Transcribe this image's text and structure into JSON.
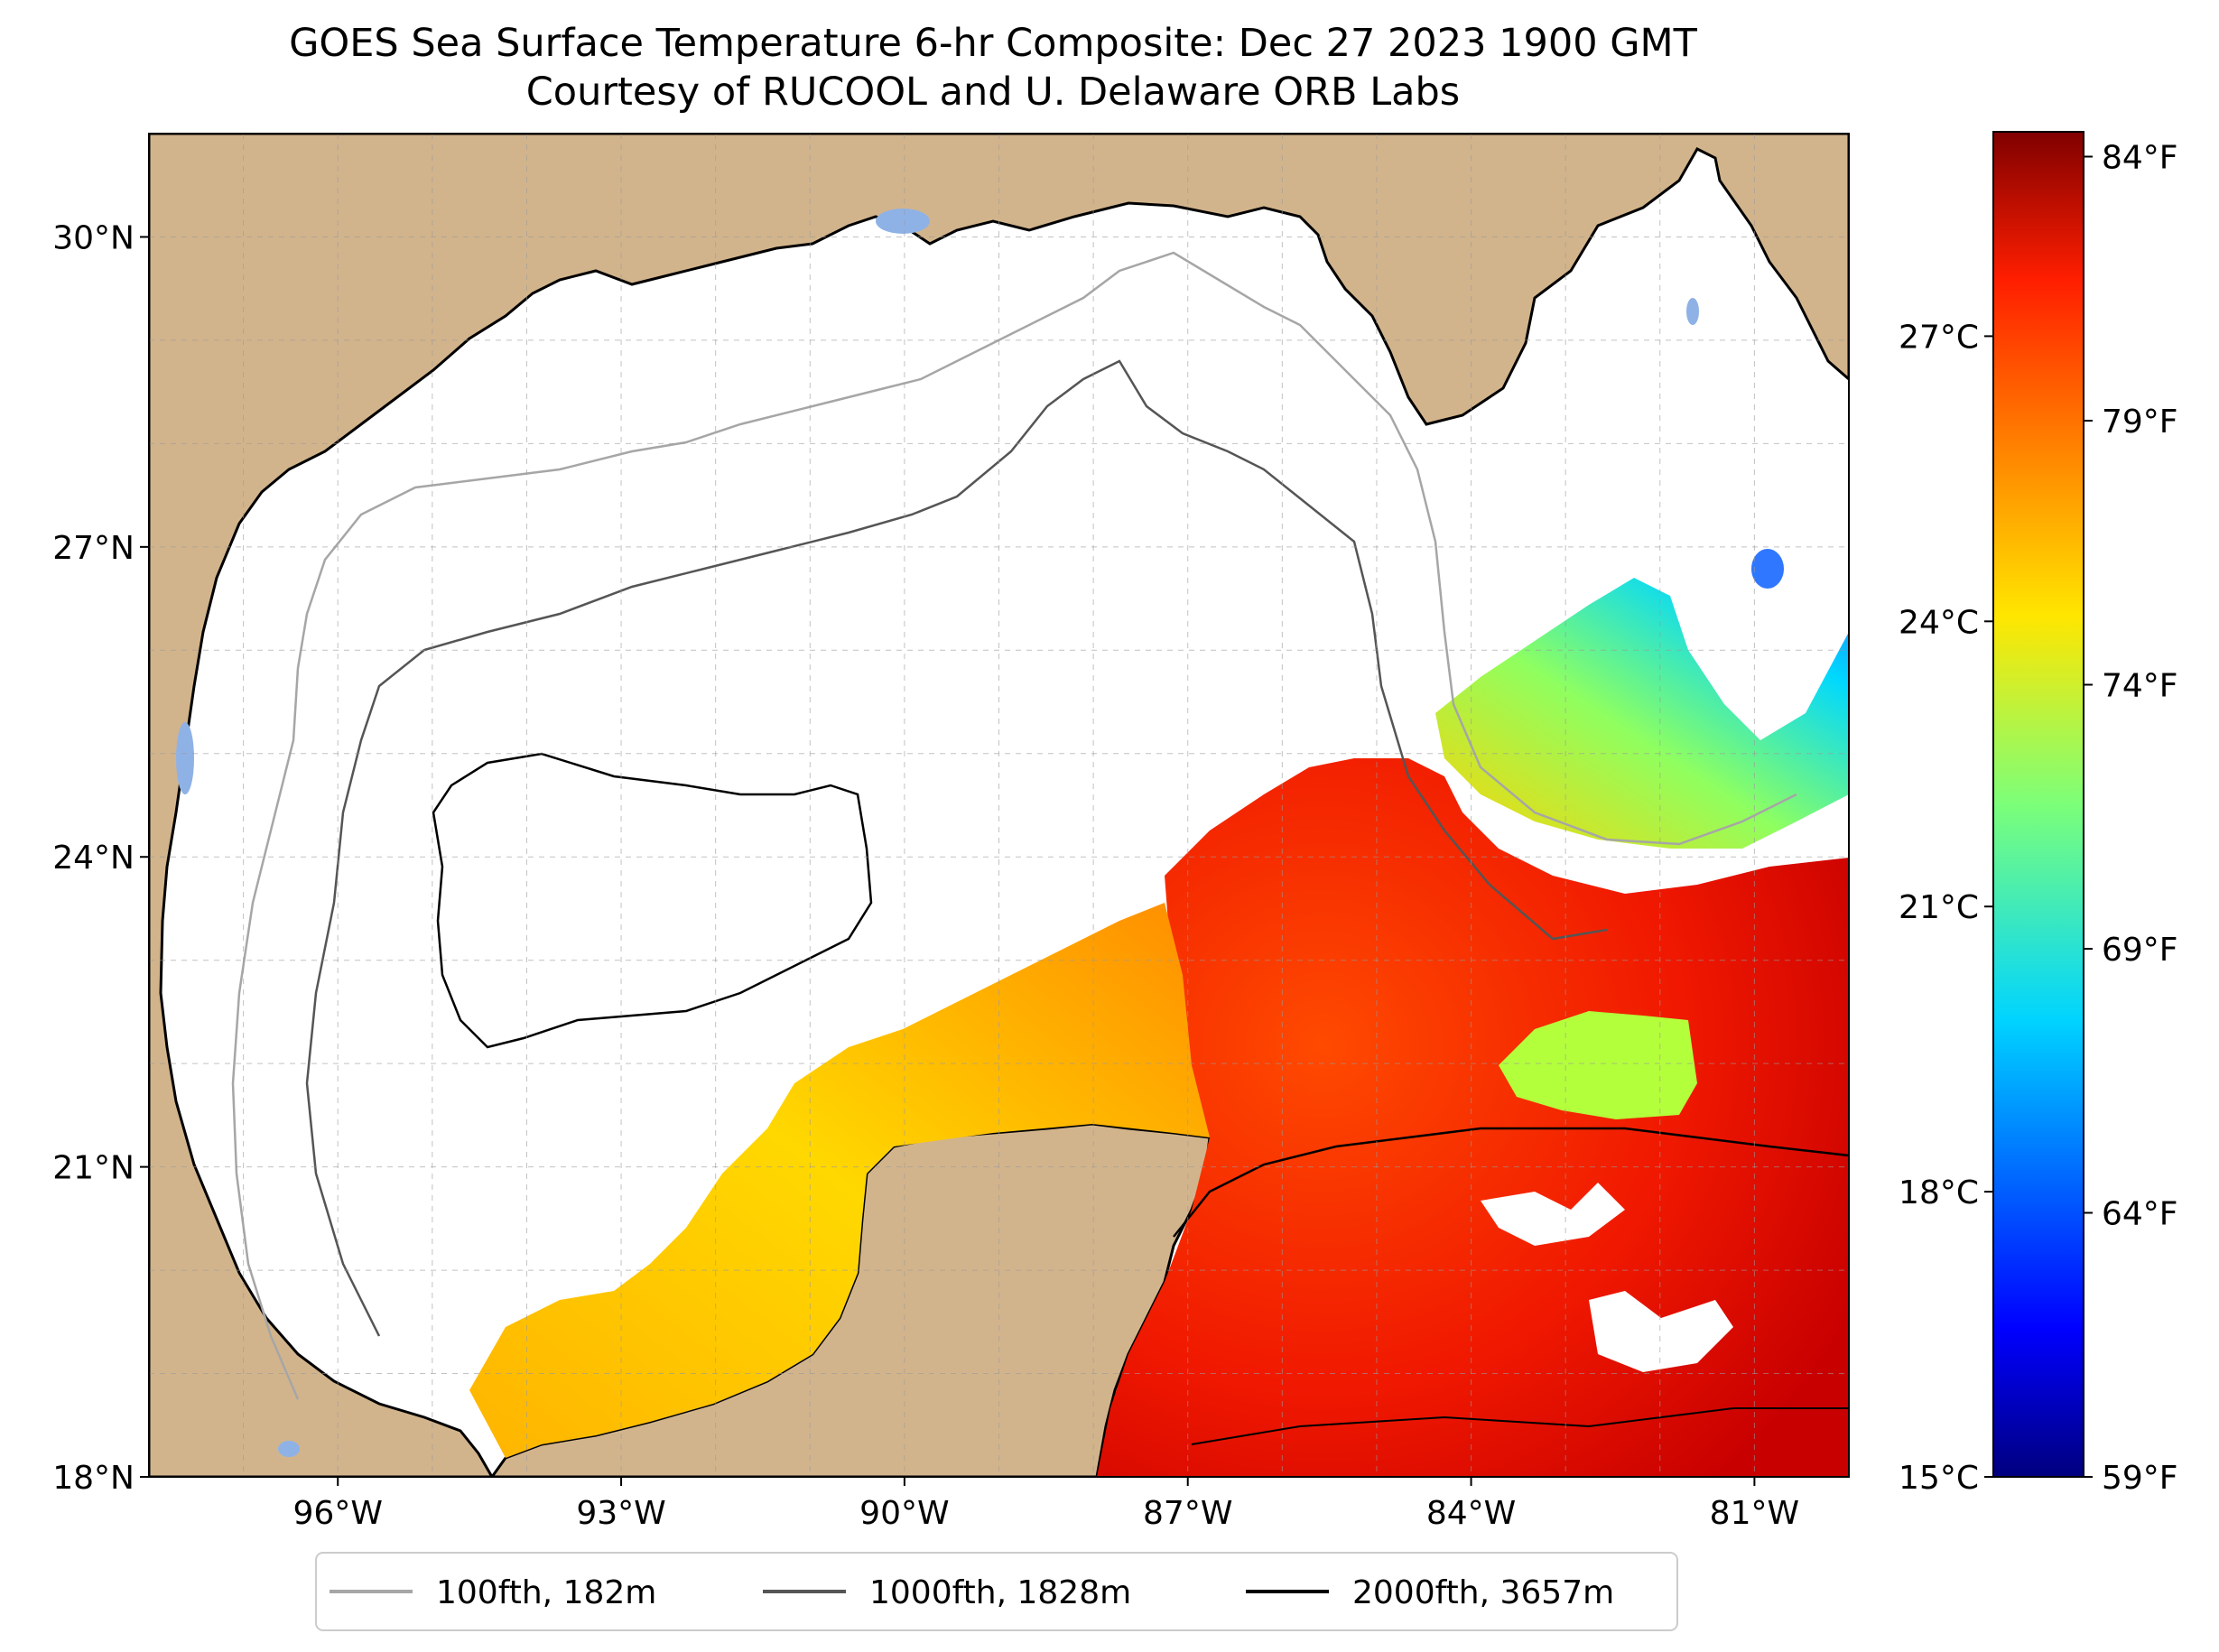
{
  "title": "GOES Sea Surface Temperature 6-hr Composite: Dec 27 2023 1900 GMT",
  "subtitle": "Courtesy of RUCOOL and U. Delaware ORB Labs",
  "map": {
    "lon_range": [
      -98,
      -80
    ],
    "lat_range": [
      18,
      31
    ],
    "lat_ticks": [
      "30°N",
      "27°N",
      "24°N",
      "21°N",
      "18°N"
    ],
    "lon_ticks": [
      "96°W",
      "93°W",
      "90°W",
      "87°W",
      "84°W",
      "81°W"
    ],
    "grid": true,
    "land_color": "#d2b48c",
    "ocean_color": "#ffffff",
    "lake_color": "#8fb2e6"
  },
  "colorbar": {
    "colormap": "jet",
    "celsius_ticks": [
      "27°C",
      "24°C",
      "21°C",
      "18°C",
      "15°C"
    ],
    "fahrenheit_ticks": [
      "84°F",
      "79°F",
      "74°F",
      "69°F",
      "64°F",
      "59°F"
    ]
  },
  "legend": {
    "placement": "bottom-center",
    "items": [
      {
        "label": "100fth, 182m",
        "color": "#a6a6a6"
      },
      {
        "label": "1000fth, 1828m",
        "color": "#555555"
      },
      {
        "label": "2000fth, 3657m",
        "color": "#000000"
      }
    ]
  }
}
